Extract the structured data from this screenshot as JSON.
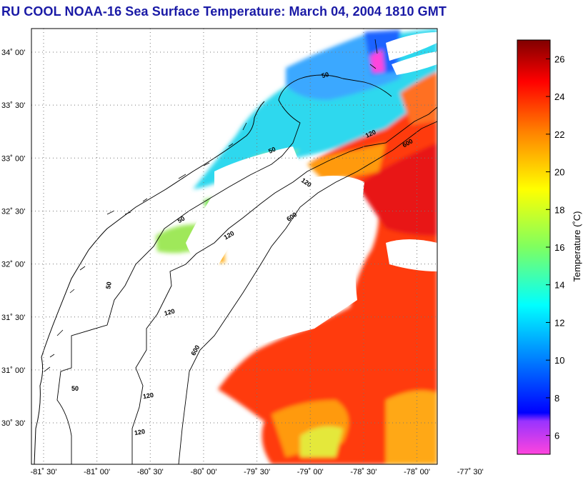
{
  "title": "RU COOL  NOAA-16  Sea Surface Temperature:  March 04, 2004 1810 GMT",
  "map": {
    "lat_labels": [
      {
        "lat": 34.0,
        "text": "34˚ 00'"
      },
      {
        "lat": 33.5,
        "text": "33˚ 30'"
      },
      {
        "lat": 33.0,
        "text": "33˚ 00'"
      },
      {
        "lat": 32.5,
        "text": "32˚ 30'"
      },
      {
        "lat": 32.0,
        "text": "32˚ 00'"
      },
      {
        "lat": 31.5,
        "text": "31˚ 30'"
      },
      {
        "lat": 31.0,
        "text": "31˚ 00'"
      },
      {
        "lat": 30.5,
        "text": "30˚ 30'"
      }
    ],
    "lon_labels": [
      {
        "lon": -81.5,
        "text": "-81˚ 30'"
      },
      {
        "lon": -81.0,
        "text": "-81˚ 00'"
      },
      {
        "lon": -80.5,
        "text": "-80˚ 30'"
      },
      {
        "lon": -80.0,
        "text": "-80˚ 00'"
      },
      {
        "lon": -79.5,
        "text": "-79˚ 30'"
      },
      {
        "lon": -79.0,
        "text": "-79˚ 00'"
      },
      {
        "lon": -78.5,
        "text": "-78˚ 30'"
      },
      {
        "lon": -78.0,
        "text": "-78˚ 00'"
      },
      {
        "lon": -77.5,
        "text": "-77˚ 30'"
      }
    ],
    "contour_labels": [
      "50",
      "50",
      "120",
      "600",
      "120",
      "50",
      "600",
      "120",
      "600",
      "50",
      "120",
      "120",
      "50",
      "120"
    ]
  },
  "colorbar": {
    "label": "Temperature (˚C)",
    "min": 5,
    "max": 27,
    "ticks": [
      6,
      8,
      10,
      12,
      14,
      16,
      18,
      20,
      22,
      24,
      26
    ]
  }
}
